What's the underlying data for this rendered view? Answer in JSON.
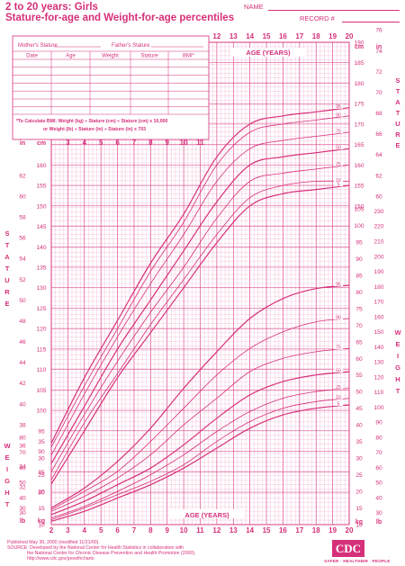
{
  "header": {
    "title": "2 to 20 years: Girls",
    "subtitle": "Stature-for-age and Weight-for-age percentiles",
    "name_label": "NAME",
    "record_label": "RECORD #"
  },
  "form": {
    "mother_stature": "Mother's Stature",
    "father_stature": "Father's Stature",
    "columns": [
      "Date",
      "Age",
      "Weight",
      "Stature",
      "BMI*"
    ],
    "bmi_note_1": "*To Calculate BMI: Weight (kg) ÷ Stature (cm) ÷ Stature (cm) x 10,000",
    "bmi_note_2": "or Weight (lb) ÷ Stature (in) ÷ Stature (in) x 703"
  },
  "labels": {
    "age_years": "AGE (YEARS)",
    "stature": "STATURE",
    "weight": "WEIGHT",
    "unit_cm": "cm",
    "unit_in": "in",
    "unit_kg": "kg",
    "unit_lb": "lb"
  },
  "footer": {
    "line1": "Published May 30, 2000 (modified 11/21/00).",
    "line2": "SOURCE: Developed by the National Center for Health Statistics in collaboration with",
    "line3": "the National Center for Chronic Disease Prevention and Health Promotion (2000).",
    "line4": "http://www.cdc.gov/growthcharts"
  },
  "logo": {
    "text": "CDC",
    "tagline": "SAFER · HEALTHIER · PEOPLE"
  },
  "colors": {
    "line": "#d6307a",
    "grid": "#ee9cc2",
    "major": "#d6307a"
  },
  "chart_data": [
    {
      "type": "line",
      "title": "Stature-for-age percentiles",
      "xlabel": "AGE (YEARS)",
      "ylabel": "STATURE",
      "x": [
        2,
        4,
        6,
        8,
        10,
        12,
        14,
        16,
        18,
        20
      ],
      "xlim": [
        2,
        20
      ],
      "ylim": [
        80,
        190
      ],
      "y_unit": "cm",
      "series": [
        {
          "name": "95",
          "values": [
            92,
            108,
            122,
            136,
            148,
            162,
            170,
            172,
            173,
            174
          ]
        },
        {
          "name": "90",
          "values": [
            91,
            106,
            120,
            134,
            146,
            160,
            168,
            170,
            171,
            172
          ]
        },
        {
          "name": "75",
          "values": [
            89,
            104,
            118,
            131,
            143,
            156,
            164,
            166,
            167,
            168
          ]
        },
        {
          "name": "50",
          "values": [
            87,
            101,
            115,
            127,
            139,
            151,
            160,
            162,
            163,
            164
          ]
        },
        {
          "name": "25",
          "values": [
            85,
            99,
            112,
            124,
            135,
            147,
            156,
            158,
            159,
            160
          ]
        },
        {
          "name": "10",
          "values": [
            83,
            97,
            109,
            121,
            132,
            143,
            152,
            155,
            156,
            156
          ]
        },
        {
          "name": "5",
          "values": [
            82,
            95,
            108,
            119,
            130,
            141,
            150,
            153,
            154,
            155
          ]
        }
      ]
    },
    {
      "type": "line",
      "title": "Weight-for-age percentiles",
      "xlabel": "AGE (YEARS)",
      "ylabel": "WEIGHT",
      "x": [
        2,
        4,
        6,
        8,
        10,
        12,
        14,
        16,
        18,
        20
      ],
      "xlim": [
        2,
        20
      ],
      "ylim": [
        10,
        105
      ],
      "y_unit": "kg",
      "series": [
        {
          "name": "95",
          "values": [
            15,
            21,
            29,
            39,
            51,
            62,
            72,
            78,
            81,
            82
          ]
        },
        {
          "name": "90",
          "values": [
            14.5,
            20,
            26,
            35,
            45,
            55,
            63,
            68,
            71,
            72
          ]
        },
        {
          "name": "75",
          "values": [
            14,
            18.5,
            24,
            31,
            40,
            48,
            56,
            60,
            62,
            63
          ]
        },
        {
          "name": "50",
          "values": [
            13,
            17,
            22,
            27,
            34,
            42,
            49,
            53,
            55,
            56
          ]
        },
        {
          "name": "25",
          "values": [
            12,
            15.5,
            20,
            25,
            31,
            38,
            44,
            48,
            50,
            51
          ]
        },
        {
          "name": "10",
          "values": [
            11.5,
            15,
            19,
            23,
            28,
            35,
            41,
            45,
            47,
            48
          ]
        },
        {
          "name": "5",
          "values": [
            11,
            14,
            18,
            22,
            27,
            33,
            39,
            43,
            45,
            46
          ]
        }
      ]
    }
  ]
}
